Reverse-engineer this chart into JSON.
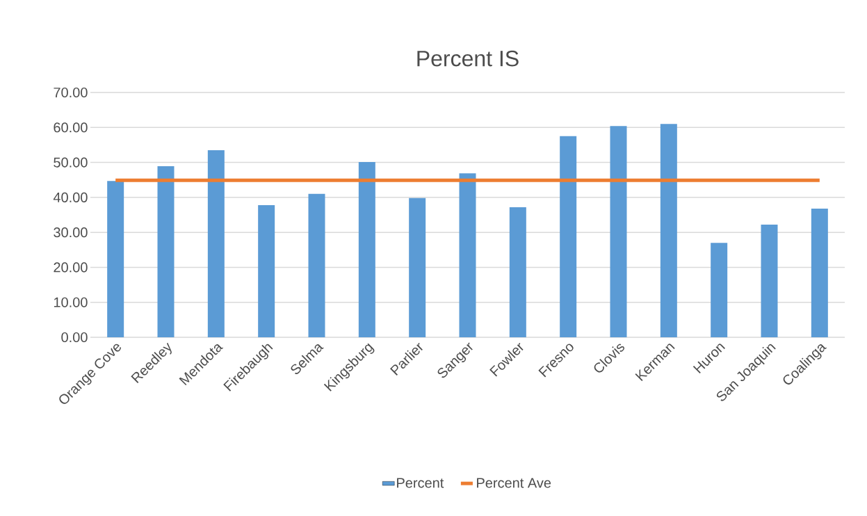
{
  "chart_data": {
    "type": "bar",
    "title": "Percent IS",
    "categories": [
      "Orange Cove",
      "Reedley",
      "Mendota",
      "Firebaugh",
      "Selma",
      "Kingsburg",
      "Parlier",
      "Sanger",
      "Fowler",
      "Fresno",
      "Clovis",
      "Kerman",
      "Huron",
      "San Joaquin",
      "Coalinga"
    ],
    "series": [
      {
        "name": "Percent",
        "color": "#5b9bd5",
        "values": [
          44.7,
          48.9,
          53.5,
          37.8,
          41.0,
          50.1,
          39.8,
          46.9,
          37.2,
          57.5,
          60.4,
          61.0,
          27.0,
          32.2,
          36.8
        ]
      },
      {
        "name": "Percent Ave",
        "type": "line",
        "color": "#ed7d31",
        "values": [
          44.9,
          44.9,
          44.9,
          44.9,
          44.9,
          44.9,
          44.9,
          44.9,
          44.9,
          44.9,
          44.9,
          44.9,
          44.9,
          44.9,
          44.9
        ]
      }
    ],
    "ylim": [
      0,
      70
    ],
    "yticks": [
      {
        "value": 0,
        "label": "0.00"
      },
      {
        "value": 10,
        "label": "10.00"
      },
      {
        "value": 20,
        "label": "20.00"
      },
      {
        "value": 30,
        "label": "30.00"
      },
      {
        "value": 40,
        "label": "40.00"
      },
      {
        "value": 50,
        "label": "50.00"
      },
      {
        "value": 60,
        "label": "60.00"
      },
      {
        "value": 70,
        "label": "70.00"
      }
    ],
    "grid": "y",
    "legend": "bottom"
  }
}
